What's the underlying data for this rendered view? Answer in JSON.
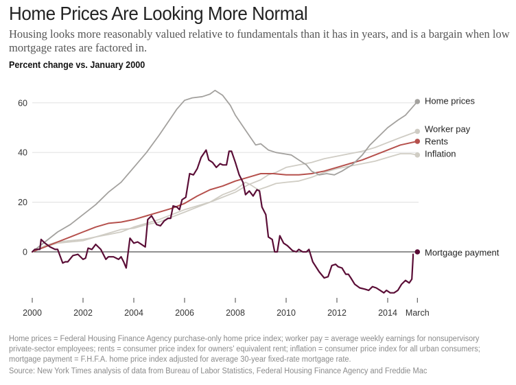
{
  "header": {
    "title": "Home Prices Are Looking More Normal",
    "subtitle": "Housing looks more reasonably valued relative to fundamentals than it has in years, and is a bargain when low mortgage rates are factored in.",
    "units_label": "Percent change vs. January 2000"
  },
  "footer": {
    "notes": "Home prices = Federal Housing Finance Agency purchase-only home price index; worker pay = average weekly earnings for nonsupervisory private-sector employees; rents = consumer price index for owners’ equivalent rent; inflation = consumer price index for all urban consumers; mortgage payment = F.H.F.A. home price index adjusted for average 30-year fixed-rate mortgage rate.",
    "source": "Source: New York Times analysis of data from Bureau of Labor Statistics, Federal Housing Finance Agency and Freddie Mac"
  },
  "chart_data": {
    "type": "line",
    "title": "Home Prices Are Looking More Normal",
    "xlabel": "",
    "ylabel": "Percent change vs. January 2000",
    "xlim": [
      2000,
      2015.17
    ],
    "ylim": [
      -18,
      66
    ],
    "grid": true,
    "legend": "right, end-of-line labels",
    "x_ticks": [
      {
        "value": 2000,
        "label": "2000"
      },
      {
        "value": 2002,
        "label": "2002"
      },
      {
        "value": 2004,
        "label": "2004"
      },
      {
        "value": 2006,
        "label": "2006"
      },
      {
        "value": 2008,
        "label": "2008"
      },
      {
        "value": 2010,
        "label": "2010"
      },
      {
        "value": 2012,
        "label": "2012"
      },
      {
        "value": 2014,
        "label": "2014"
      },
      {
        "value": 2015.17,
        "label": "March"
      }
    ],
    "y_ticks": [
      {
        "value": 0,
        "label": "0"
      },
      {
        "value": 20,
        "label": "20"
      },
      {
        "value": 40,
        "label": "40"
      },
      {
        "value": 60,
        "label": "60"
      }
    ],
    "series": [
      {
        "name": "Inflation",
        "color": "#d0cdc4",
        "points": [
          [
            2000,
            0
          ],
          [
            2000.5,
            2
          ],
          [
            2001,
            3.5
          ],
          [
            2001.5,
            4
          ],
          [
            2002,
            4.5
          ],
          [
            2002.5,
            6
          ],
          [
            2003,
            7
          ],
          [
            2003.5,
            8
          ],
          [
            2004,
            10
          ],
          [
            2004.5,
            11.5
          ],
          [
            2005,
            13
          ],
          [
            2005.5,
            15
          ],
          [
            2006,
            17
          ],
          [
            2006.5,
            18.5
          ],
          [
            2007,
            20
          ],
          [
            2007.5,
            23
          ],
          [
            2008,
            25
          ],
          [
            2008.4,
            28
          ],
          [
            2008.6,
            27
          ],
          [
            2008.9,
            25
          ],
          [
            2009.2,
            26
          ],
          [
            2009.6,
            27.5
          ],
          [
            2010,
            28
          ],
          [
            2010.5,
            28.5
          ],
          [
            2011,
            30
          ],
          [
            2011.5,
            32
          ],
          [
            2012,
            33.5
          ],
          [
            2012.5,
            34.5
          ],
          [
            2013,
            35.5
          ],
          [
            2013.5,
            36.5
          ],
          [
            2014,
            38
          ],
          [
            2014.5,
            39.5
          ],
          [
            2014.9,
            39.5
          ],
          [
            2015.17,
            39
          ]
        ]
      },
      {
        "name": "Worker pay",
        "color": "#cfccc4",
        "points": [
          [
            2000,
            0
          ],
          [
            2000.5,
            2.5
          ],
          [
            2001,
            4
          ],
          [
            2001.5,
            4.5
          ],
          [
            2002,
            5
          ],
          [
            2002.5,
            6
          ],
          [
            2003,
            7.5
          ],
          [
            2003.5,
            9
          ],
          [
            2004,
            9.5
          ],
          [
            2004.5,
            11
          ],
          [
            2005,
            12
          ],
          [
            2005.5,
            14
          ],
          [
            2006,
            16
          ],
          [
            2006.5,
            18
          ],
          [
            2007,
            20
          ],
          [
            2007.5,
            22
          ],
          [
            2008,
            24
          ],
          [
            2008.5,
            27
          ],
          [
            2009,
            29
          ],
          [
            2009.3,
            31
          ],
          [
            2009.6,
            32
          ],
          [
            2010,
            34
          ],
          [
            2010.5,
            35
          ],
          [
            2011,
            36
          ],
          [
            2011.5,
            37.5
          ],
          [
            2012,
            38.5
          ],
          [
            2012.5,
            39.5
          ],
          [
            2013,
            40.5
          ],
          [
            2013.5,
            42
          ],
          [
            2014,
            44
          ],
          [
            2014.5,
            46
          ],
          [
            2015.17,
            48.5
          ]
        ]
      },
      {
        "name": "Rents",
        "color": "#b5504c",
        "points": [
          [
            2000,
            0
          ],
          [
            2000.5,
            2
          ],
          [
            2001,
            4
          ],
          [
            2001.5,
            6
          ],
          [
            2002,
            8
          ],
          [
            2002.5,
            10
          ],
          [
            2003,
            11.5
          ],
          [
            2003.5,
            12
          ],
          [
            2004,
            13
          ],
          [
            2004.5,
            14.5
          ],
          [
            2005,
            16
          ],
          [
            2005.5,
            17.5
          ],
          [
            2006,
            19.5
          ],
          [
            2006.5,
            22.5
          ],
          [
            2007,
            25
          ],
          [
            2007.5,
            26.5
          ],
          [
            2008,
            28.5
          ],
          [
            2008.5,
            30
          ],
          [
            2009,
            31.5
          ],
          [
            2009.5,
            31.5
          ],
          [
            2010,
            31
          ],
          [
            2010.5,
            31
          ],
          [
            2011,
            31.5
          ],
          [
            2011.5,
            32.5
          ],
          [
            2012,
            34
          ],
          [
            2012.5,
            35.5
          ],
          [
            2013,
            37
          ],
          [
            2013.5,
            39
          ],
          [
            2014,
            41
          ],
          [
            2014.5,
            43
          ],
          [
            2015.17,
            44.5
          ]
        ]
      },
      {
        "name": "Home prices",
        "color": "#a3a19e",
        "points": [
          [
            2000,
            0
          ],
          [
            2000.5,
            4
          ],
          [
            2001,
            8
          ],
          [
            2001.5,
            11
          ],
          [
            2002,
            15
          ],
          [
            2002.5,
            19
          ],
          [
            2003,
            24
          ],
          [
            2003.5,
            28
          ],
          [
            2004,
            34
          ],
          [
            2004.5,
            40
          ],
          [
            2005,
            47
          ],
          [
            2005.4,
            53
          ],
          [
            2005.7,
            57.5
          ],
          [
            2006,
            61
          ],
          [
            2006.3,
            62
          ],
          [
            2006.7,
            62.5
          ],
          [
            2007,
            63.5
          ],
          [
            2007.2,
            65
          ],
          [
            2007.5,
            63
          ],
          [
            2007.8,
            59
          ],
          [
            2008,
            55
          ],
          [
            2008.3,
            50.5
          ],
          [
            2008.6,
            46
          ],
          [
            2008.8,
            43
          ],
          [
            2009,
            43.5
          ],
          [
            2009.3,
            41
          ],
          [
            2009.6,
            40
          ],
          [
            2009.9,
            39.5
          ],
          [
            2010.2,
            39
          ],
          [
            2010.5,
            37
          ],
          [
            2010.8,
            35
          ],
          [
            2011,
            32.5
          ],
          [
            2011.3,
            31
          ],
          [
            2011.6,
            31.5
          ],
          [
            2011.9,
            31
          ],
          [
            2012.2,
            32.5
          ],
          [
            2012.6,
            35
          ],
          [
            2013,
            39
          ],
          [
            2013.3,
            43
          ],
          [
            2013.6,
            46
          ],
          [
            2014,
            50
          ],
          [
            2014.4,
            53
          ],
          [
            2014.7,
            55
          ],
          [
            2015,
            58.5
          ],
          [
            2015.17,
            60.5
          ]
        ]
      },
      {
        "name": "Mortgage payment",
        "color": "#5a0d36",
        "points": [
          [
            2000,
            0
          ],
          [
            2000.1,
            1
          ],
          [
            2000.2,
            1
          ],
          [
            2000.3,
            1
          ],
          [
            2000.35,
            5
          ],
          [
            2000.5,
            3.5
          ],
          [
            2000.7,
            2
          ],
          [
            2000.9,
            1
          ],
          [
            2001,
            1
          ],
          [
            2001.2,
            -4.5
          ],
          [
            2001.3,
            -4
          ],
          [
            2001.4,
            -4
          ],
          [
            2001.6,
            -1.5
          ],
          [
            2001.8,
            -1
          ],
          [
            2002,
            -3
          ],
          [
            2002.1,
            -2.5
          ],
          [
            2002.2,
            1.5
          ],
          [
            2002.35,
            1
          ],
          [
            2002.5,
            3
          ],
          [
            2002.7,
            1
          ],
          [
            2002.9,
            -3
          ],
          [
            2003,
            -2
          ],
          [
            2003.2,
            -2
          ],
          [
            2003.4,
            -3
          ],
          [
            2003.5,
            -2
          ],
          [
            2003.6,
            -4
          ],
          [
            2003.7,
            -6.5
          ],
          [
            2003.85,
            5.5
          ],
          [
            2004,
            3.5
          ],
          [
            2004.15,
            4
          ],
          [
            2004.3,
            3
          ],
          [
            2004.45,
            2
          ],
          [
            2004.55,
            13
          ],
          [
            2004.7,
            14.5
          ],
          [
            2004.9,
            11
          ],
          [
            2005.05,
            10.5
          ],
          [
            2005.2,
            12.5
          ],
          [
            2005.35,
            13.5
          ],
          [
            2005.45,
            13.5
          ],
          [
            2005.55,
            18.5
          ],
          [
            2005.7,
            18
          ],
          [
            2005.8,
            17
          ],
          [
            2005.9,
            21
          ],
          [
            2006.05,
            22
          ],
          [
            2006.2,
            31.5
          ],
          [
            2006.35,
            31
          ],
          [
            2006.5,
            33.5
          ],
          [
            2006.65,
            38
          ],
          [
            2006.85,
            41
          ],
          [
            2006.95,
            37
          ],
          [
            2007.1,
            36
          ],
          [
            2007.25,
            34
          ],
          [
            2007.4,
            35.5
          ],
          [
            2007.5,
            35
          ],
          [
            2007.65,
            35
          ],
          [
            2007.75,
            40.5
          ],
          [
            2007.85,
            40.5
          ],
          [
            2008,
            36
          ],
          [
            2008.15,
            31
          ],
          [
            2008.3,
            28
          ],
          [
            2008.4,
            23
          ],
          [
            2008.55,
            24.5
          ],
          [
            2008.7,
            22.5
          ],
          [
            2008.85,
            25
          ],
          [
            2008.95,
            24.5
          ],
          [
            2009.05,
            18
          ],
          [
            2009.2,
            15
          ],
          [
            2009.3,
            6
          ],
          [
            2009.45,
            5
          ],
          [
            2009.55,
            0
          ],
          [
            2009.65,
            0
          ],
          [
            2009.75,
            6.5
          ],
          [
            2009.9,
            3.5
          ],
          [
            2010.05,
            2.5
          ],
          [
            2010.25,
            0.5
          ],
          [
            2010.4,
            0
          ],
          [
            2010.5,
            1
          ],
          [
            2010.65,
            0
          ],
          [
            2010.8,
            0
          ],
          [
            2010.9,
            1
          ],
          [
            2011.05,
            -4
          ],
          [
            2011.3,
            -8
          ],
          [
            2011.5,
            -10.5
          ],
          [
            2011.65,
            -10
          ],
          [
            2011.8,
            -5.5
          ],
          [
            2011.95,
            -5
          ],
          [
            2012.05,
            -6
          ],
          [
            2012.2,
            -6.5
          ],
          [
            2012.35,
            -9
          ],
          [
            2012.45,
            -9
          ],
          [
            2012.55,
            -10.5
          ],
          [
            2012.7,
            -13
          ],
          [
            2012.9,
            -14.5
          ],
          [
            2013.1,
            -15
          ],
          [
            2013.25,
            -15.5
          ],
          [
            2013.4,
            -14
          ],
          [
            2013.55,
            -14.5
          ],
          [
            2013.7,
            -15.5
          ],
          [
            2013.85,
            -16.5
          ],
          [
            2013.95,
            -15.5
          ],
          [
            2014.1,
            -16.5
          ],
          [
            2014.25,
            -16.5
          ],
          [
            2014.4,
            -15.5
          ],
          [
            2014.55,
            -13
          ],
          [
            2014.7,
            -11.5
          ],
          [
            2014.85,
            -12.5
          ],
          [
            2014.95,
            -11
          ],
          [
            2015.0,
            -2
          ],
          [
            2015.0,
            -1
          ]
        ]
      }
    ]
  }
}
